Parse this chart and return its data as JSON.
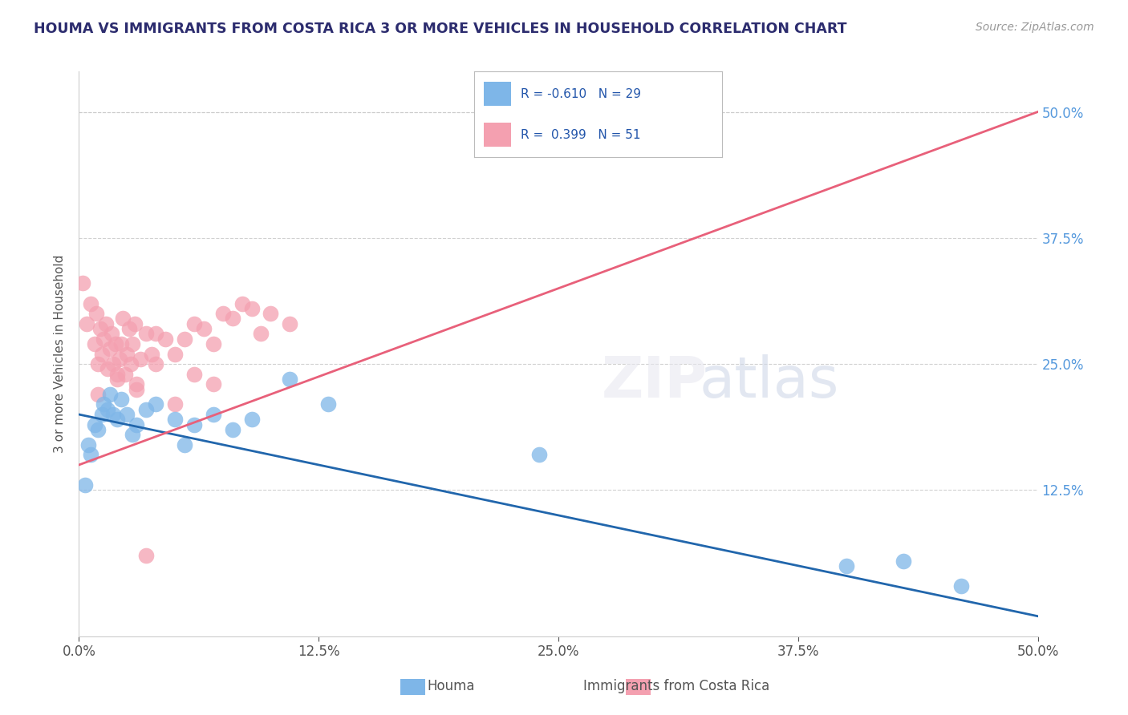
{
  "title": "HOUMA VS IMMIGRANTS FROM COSTA RICA 3 OR MORE VEHICLES IN HOUSEHOLD CORRELATION CHART",
  "source_text": "Source: ZipAtlas.com",
  "ylabel": "3 or more Vehicles in Household",
  "x_tick_labels": [
    "0.0%",
    "12.5%",
    "25.0%",
    "37.5%",
    "50.0%"
  ],
  "x_ticks": [
    0.0,
    12.5,
    25.0,
    37.5,
    50.0
  ],
  "y_tick_labels_right": [
    "12.5%",
    "25.0%",
    "37.5%",
    "50.0%"
  ],
  "y_ticks_right": [
    12.5,
    25.0,
    37.5,
    50.0
  ],
  "xlim": [
    0.0,
    50.0
  ],
  "ylim": [
    -2.0,
    54.0
  ],
  "houma_R": -0.61,
  "houma_N": 29,
  "immigrants_R": 0.399,
  "immigrants_N": 51,
  "legend_labels": [
    "Houma",
    "Immigrants from Costa Rica"
  ],
  "houma_color": "#7eb6e8",
  "immigrants_color": "#f4a0b0",
  "houma_line_color": "#2166ac",
  "immigrants_line_color": "#e8607a",
  "background_color": "#ffffff",
  "plot_bg_color": "#ffffff",
  "grid_color": "#cccccc",
  "title_color": "#2c2c6e",
  "source_color": "#999999",
  "right_axis_color": "#5599dd",
  "houma_x": [
    0.3,
    0.5,
    0.6,
    0.8,
    1.0,
    1.2,
    1.3,
    1.5,
    1.6,
    1.8,
    2.0,
    2.2,
    2.5,
    2.8,
    3.0,
    3.5,
    4.0,
    5.0,
    5.5,
    6.0,
    7.0,
    8.0,
    9.0,
    11.0,
    13.0,
    24.0,
    40.0,
    43.0,
    46.0
  ],
  "houma_y": [
    13.0,
    17.0,
    16.0,
    19.0,
    18.5,
    20.0,
    21.0,
    20.5,
    22.0,
    20.0,
    19.5,
    21.5,
    20.0,
    18.0,
    19.0,
    20.5,
    21.0,
    19.5,
    17.0,
    19.0,
    20.0,
    18.5,
    19.5,
    23.5,
    21.0,
    16.0,
    5.0,
    5.5,
    3.0
  ],
  "immigrants_x": [
    0.2,
    0.4,
    0.6,
    0.8,
    0.9,
    1.0,
    1.1,
    1.2,
    1.3,
    1.4,
    1.5,
    1.6,
    1.7,
    1.8,
    1.9,
    2.0,
    2.1,
    2.2,
    2.3,
    2.4,
    2.5,
    2.6,
    2.7,
    2.8,
    2.9,
    3.0,
    3.2,
    3.5,
    3.8,
    4.0,
    4.5,
    5.0,
    5.5,
    6.0,
    6.5,
    7.0,
    7.5,
    8.0,
    8.5,
    9.0,
    9.5,
    10.0,
    11.0,
    1.0,
    2.0,
    3.0,
    4.0,
    5.0,
    6.0,
    7.0,
    3.5
  ],
  "immigrants_y": [
    33.0,
    29.0,
    31.0,
    27.0,
    30.0,
    25.0,
    28.5,
    26.0,
    27.5,
    29.0,
    24.5,
    26.5,
    28.0,
    25.0,
    27.0,
    23.5,
    25.5,
    27.0,
    29.5,
    24.0,
    26.0,
    28.5,
    25.0,
    27.0,
    29.0,
    23.0,
    25.5,
    28.0,
    26.0,
    28.0,
    27.5,
    26.0,
    27.5,
    29.0,
    28.5,
    27.0,
    30.0,
    29.5,
    31.0,
    30.5,
    28.0,
    30.0,
    29.0,
    22.0,
    24.0,
    22.5,
    25.0,
    21.0,
    24.0,
    23.0,
    6.0
  ]
}
